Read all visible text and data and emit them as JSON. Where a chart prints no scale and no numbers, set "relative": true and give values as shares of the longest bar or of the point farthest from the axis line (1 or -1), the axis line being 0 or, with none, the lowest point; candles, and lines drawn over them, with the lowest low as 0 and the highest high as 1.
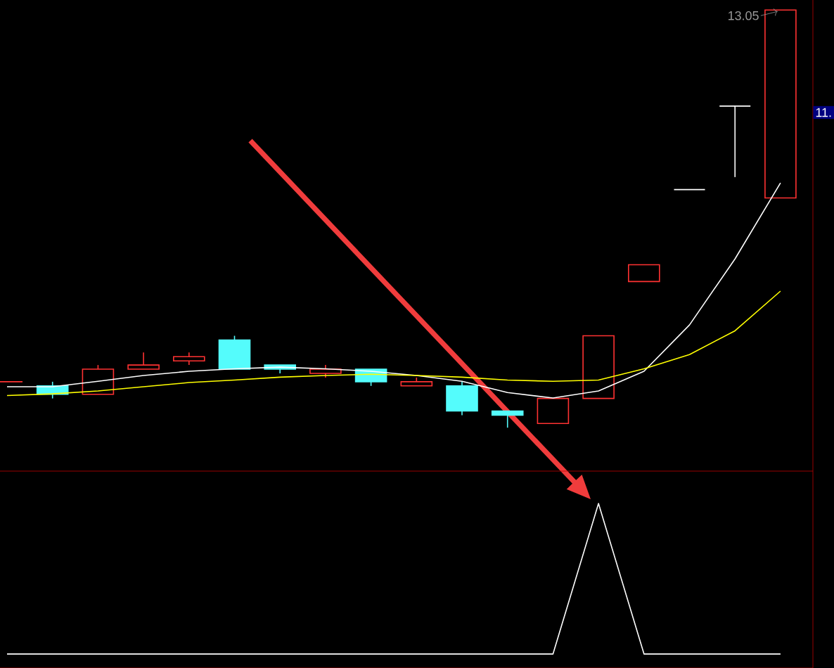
{
  "chart_data": [
    {
      "type": "candlestick",
      "relative": true,
      "categories": [
        null,
        null,
        null,
        null,
        null,
        null,
        null,
        null,
        null,
        null,
        null,
        null,
        null,
        null,
        null,
        null,
        null,
        null
      ],
      "ohlc": [
        [
          0.11,
          0.11,
          0.11,
          0.11
        ],
        [
          0.1,
          0.11,
          0.07,
          0.08
        ],
        [
          0.08,
          0.15,
          0.08,
          0.14
        ],
        [
          0.14,
          0.18,
          0.14,
          0.15
        ],
        [
          0.16,
          0.18,
          0.15,
          0.17
        ],
        [
          0.21,
          0.22,
          0.14,
          0.14
        ],
        [
          0.15,
          0.15,
          0.13,
          0.14
        ],
        [
          0.13,
          0.15,
          0.12,
          0.14
        ],
        [
          0.14,
          0.14,
          0.1,
          0.11
        ],
        [
          0.1,
          0.12,
          0.1,
          0.11
        ],
        [
          0.1,
          0.11,
          0.03,
          0.04
        ],
        [
          0.04,
          0.04,
          0.0,
          0.03
        ],
        [
          0.01,
          0.07,
          0.01,
          0.07
        ],
        [
          0.07,
          0.22,
          0.07,
          0.22
        ],
        [
          0.35,
          0.39,
          0.35,
          0.39
        ],
        [
          0.57,
          0.57,
          0.57,
          0.57
        ],
        [
          0.77,
          0.77,
          0.6,
          0.77
        ],
        [
          0.55,
          1,
          0.55,
          1
        ]
      ],
      "colors": [
        "#ff3232",
        "#54fcfc",
        "#ff3232",
        "#ff3232",
        "#ff3232",
        "#54fcfc",
        "#54fcfc",
        "#ff3232",
        "#54fcfc",
        "#ff3232",
        "#54fcfc",
        "#54fcfc",
        "#ff3232",
        "#ff3232",
        "#ff3232",
        "#ffffff",
        "#ffffff",
        "#ff3232"
      ],
      "series": [
        {
          "type": "line",
          "color": "#ffffff",
          "values": [
            0.098,
            0.098,
            0.111,
            0.125,
            0.135,
            0.141,
            0.145,
            0.141,
            0.135,
            0.125,
            0.111,
            0.084,
            0.071,
            0.088,
            0.135,
            0.246,
            0.404,
            0.586
          ]
        },
        {
          "type": "line",
          "color": "#ffff00",
          "values": [
            0.077,
            0.081,
            0.088,
            0.098,
            0.108,
            0.114,
            0.121,
            0.125,
            0.128,
            0.125,
            0.121,
            0.114,
            0.111,
            0.114,
            0.141,
            0.175,
            0.232,
            0.327
          ]
        }
      ],
      "annotations": [
        "13.05",
        "11."
      ]
    },
    {
      "type": "line",
      "relative": true,
      "categories": [
        null,
        null,
        null,
        null,
        null,
        null,
        null,
        null,
        null,
        null,
        null,
        null,
        null,
        null,
        null,
        null,
        null,
        null
      ],
      "color": "#ffffff",
      "values": [
        0,
        0,
        0,
        0,
        0,
        0,
        0,
        0,
        0,
        0,
        0,
        0,
        0,
        1,
        0,
        0,
        0,
        0
      ]
    }
  ]
}
